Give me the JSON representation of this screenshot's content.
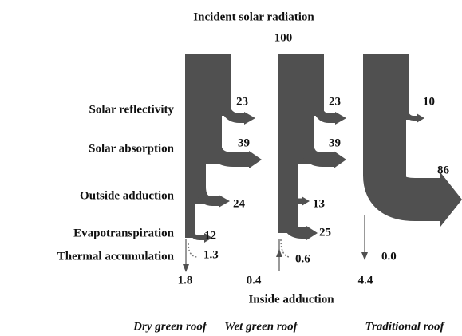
{
  "title": "Incident solar radiation",
  "incident": "100",
  "rows": [
    "Solar reflectivity",
    "Solar absorption",
    "Outside adduction",
    "Evapotranspiration",
    "Thermal accumulation"
  ],
  "bottom_label": "Inside adduction",
  "columns": [
    {
      "name": "Dry green roof",
      "reflectivity": "23",
      "absorption": "39",
      "outside": "24",
      "evapotranspiration": "12",
      "thermal": "1.3",
      "inside": "1.8"
    },
    {
      "name": "Wet green roof",
      "reflectivity": "23",
      "absorption": "39",
      "outside": "13",
      "evapotranspiration": "25",
      "thermal": "0.6",
      "inside": "0.4"
    },
    {
      "name": "Traditional roof",
      "reflectivity": "10",
      "absorption": "86",
      "thermal": "0.0",
      "inside": "4.4"
    }
  ]
}
